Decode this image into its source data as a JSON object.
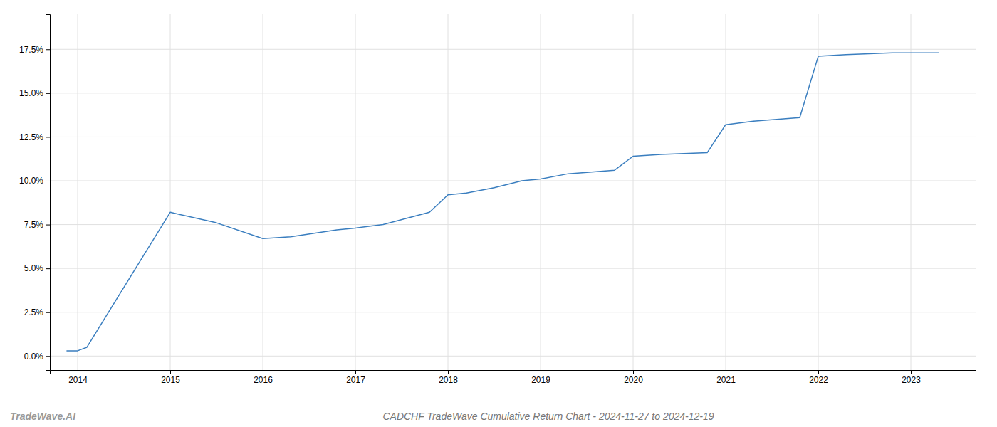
{
  "chart_data": {
    "type": "line",
    "title": "CADCHF TradeWave Cumulative Return Chart - 2024-11-27 to 2024-12-19",
    "annotations": [
      "TradeWave.AI"
    ],
    "x": [
      2013.88,
      2014.0,
      2014.1,
      2015.0,
      2015.5,
      2016.0,
      2016.3,
      2016.8,
      2017.0,
      2017.3,
      2017.8,
      2018.0,
      2018.2,
      2018.5,
      2018.8,
      2019.0,
      2019.3,
      2019.8,
      2020.0,
      2020.3,
      2020.8,
      2021.0,
      2021.3,
      2021.8,
      2022.0,
      2022.3,
      2022.8,
      2023.0,
      2023.3
    ],
    "values": [
      0.003,
      0.003,
      0.005,
      0.082,
      0.076,
      0.067,
      0.068,
      0.072,
      0.073,
      0.075,
      0.082,
      0.092,
      0.093,
      0.096,
      0.1,
      0.101,
      0.104,
      0.106,
      0.114,
      0.115,
      0.116,
      0.132,
      0.134,
      0.136,
      0.171,
      0.172,
      0.173,
      0.173,
      0.173
    ],
    "color": "#3a7ebf",
    "xlim": [
      2013.7,
      2023.7
    ],
    "xticks": [
      2014,
      2015,
      2016,
      2017,
      2018,
      2019,
      2020,
      2021,
      2022,
      2023
    ],
    "ylim": [
      -0.008,
      0.195
    ],
    "yticks": [
      {
        "value": 0.0,
        "label": "0.0%"
      },
      {
        "value": 0.025,
        "label": "2.5%"
      },
      {
        "value": 0.05,
        "label": "5.0%"
      },
      {
        "value": 0.075,
        "label": "7.5%"
      },
      {
        "value": 0.1,
        "label": "10.0%"
      },
      {
        "value": 0.125,
        "label": "12.5%"
      },
      {
        "value": 0.15,
        "label": "15.0%"
      },
      {
        "value": 0.175,
        "label": "17.5%"
      }
    ],
    "grid": true
  }
}
